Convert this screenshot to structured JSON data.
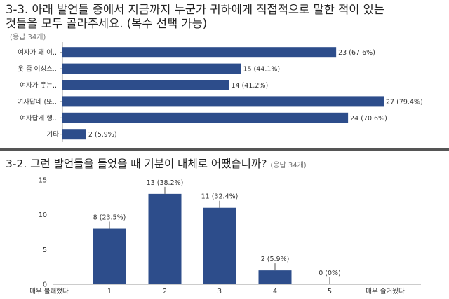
{
  "q1": {
    "title_line1": "3-3. 아래 발언들 중에서 지금까지 누군가 귀하에게 직접적으로 말한 적이 있는",
    "title_line2": "것들을 모두 골라주세요. (복수 선택 가능)",
    "response_count": "(응답 34개)"
  },
  "q2": {
    "title": "3-2. 그런 발언들을 들었을 때 기분이 대체로 어땠습니까?",
    "response_count": "(응답 34개)"
  },
  "colors": {
    "bar": "#2d4d8b",
    "axis": "#999999"
  },
  "chart_data": [
    {
      "type": "bar",
      "orientation": "horizontal",
      "categories": [
        "여자가 왜 이...",
        "옷 좀 여성스...",
        "여자가 웃는...",
        "여자답네 (또...",
        "여자답게 행...",
        "기타"
      ],
      "values": [
        23,
        15,
        14,
        27,
        24,
        2
      ],
      "data_labels": [
        "23 (67.6%)",
        "15 (44.1%)",
        "14 (41.2%)",
        "27 (79.4%)",
        "24 (70.6%)",
        "2 (5.9%)"
      ],
      "xlim": [
        0,
        30
      ]
    },
    {
      "type": "bar",
      "categories": [
        "1",
        "2",
        "3",
        "4",
        "5"
      ],
      "values": [
        8,
        13,
        11,
        2,
        0
      ],
      "data_labels": [
        "8 (23.5%)",
        "13 (38.2%)",
        "11 (32.4%)",
        "2 (5.9%)",
        "0 (0%)"
      ],
      "yticks": [
        "0",
        "5",
        "10",
        "15"
      ],
      "ylim": [
        0,
        15
      ],
      "x_end_labels": {
        "left": "매우 불쾌했다",
        "right": "매우 즐거웠다"
      }
    }
  ]
}
